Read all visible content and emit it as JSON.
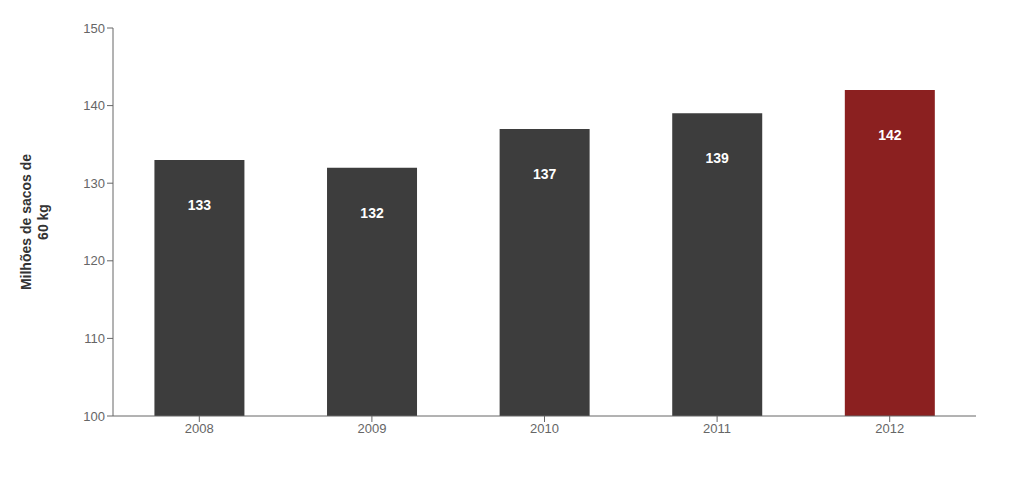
{
  "chart_data": {
    "type": "bar",
    "categories": [
      "2008",
      "2009",
      "2010",
      "2011",
      "2012"
    ],
    "values": [
      133,
      132,
      137,
      139,
      142
    ],
    "colors": [
      "#3d3d3d",
      "#3d3d3d",
      "#3d3d3d",
      "#3d3d3d",
      "#8b2020"
    ],
    "ylabel": "Milhões de sacos de\n60 kg",
    "ylim": [
      100,
      150
    ],
    "yticks": [
      100,
      110,
      120,
      130,
      140,
      150
    ],
    "data_labels": true,
    "grid": false
  }
}
